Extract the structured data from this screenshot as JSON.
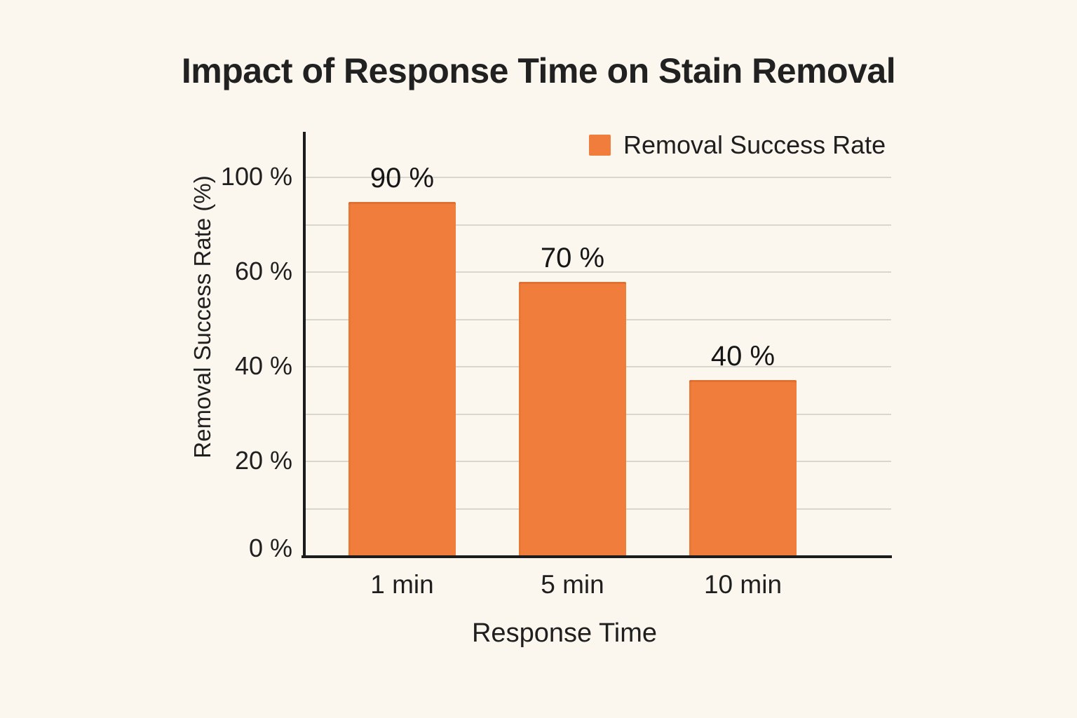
{
  "title": "Impact of Response Time on Stain Removal",
  "legend": {
    "label": "Removal Success Rate",
    "swatch_color": "#F07D3B"
  },
  "axes": {
    "y_label": "Removal Success Rate (%)",
    "x_label": "Response Time",
    "y_tick_labels": [
      "100 %",
      "60 %",
      "40 %",
      "20 %",
      "0 %"
    ],
    "x_tick_labels": [
      "1 min",
      "5 min",
      "10 min"
    ]
  },
  "chart_data": {
    "type": "bar",
    "title": "Impact of Response Time on Stain Removal",
    "xlabel": "Response Time",
    "ylabel": "Removal Success Rate (%)",
    "categories": [
      "1 min",
      "5 min",
      "10 min"
    ],
    "series": [
      {
        "name": "Removal Success Rate",
        "values": [
          90,
          70,
          40
        ]
      }
    ],
    "bar_value_labels": [
      "90 %",
      "70 %",
      "40 %"
    ],
    "y_tick_labels_shown": [
      "100 %",
      "60 %",
      "40 %",
      "20 %",
      "0 %"
    ],
    "ylim": [
      0,
      100
    ],
    "grid": true,
    "legend_position": "top-right",
    "bar_color": "#F07D3B"
  },
  "colors": {
    "background": "#FBF6EE",
    "bar": "#F07D3B",
    "axis": "#1C1C1C",
    "gridline": "#D9D6CE",
    "text": "#1F1F1F"
  }
}
